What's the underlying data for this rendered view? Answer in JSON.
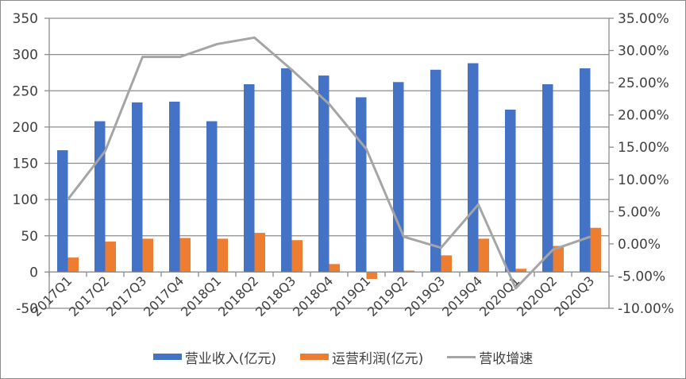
{
  "chart_data": {
    "type": "bar",
    "title": "",
    "xlabel": "",
    "ylabel": "",
    "y2label": "",
    "categories": [
      "2017Q1",
      "2017Q2",
      "2017Q3",
      "2017Q4",
      "2018Q1",
      "2018Q2",
      "2018Q3",
      "2018Q4",
      "2019Q1",
      "2019Q2",
      "2019Q3",
      "2019Q4",
      "2020Q1",
      "2020Q2",
      "2020Q3"
    ],
    "series": [
      {
        "name": "营业收入(亿元)",
        "type": "bar",
        "axis": "left",
        "color": "#4472C4",
        "values": [
          168,
          208,
          234,
          235,
          208,
          259,
          281,
          271,
          241,
          262,
          279,
          288,
          224,
          259,
          281
        ]
      },
      {
        "name": "运营利润(亿元)",
        "type": "bar",
        "axis": "left",
        "color": "#ED7D31",
        "values": [
          20,
          42,
          46,
          47,
          46,
          54,
          44,
          11,
          -9.5,
          2,
          23,
          46,
          4.5,
          36,
          61
        ]
      },
      {
        "name": "营收增速",
        "type": "line",
        "axis": "right",
        "color": "#A5A5A5",
        "values": [
          6.9,
          14.4,
          29.0,
          29.0,
          31.0,
          32.0,
          27.0,
          21.7,
          14.7,
          1.1,
          -0.6,
          6.1,
          -6.9,
          -0.9,
          1.1
        ]
      }
    ],
    "ylim": [
      -50,
      350
    ],
    "yticks": [
      "350",
      "300",
      "250",
      "200",
      "150",
      "100",
      "50",
      "0",
      "-50"
    ],
    "y2lim": [
      -10,
      35
    ],
    "y2ticks": [
      "35.00%",
      "30.00%",
      "25.00%",
      "20.00%",
      "15.00%",
      "10.00%",
      "5.00%",
      "0.00%",
      "-5.00%",
      "-10.00%"
    ],
    "grid": true,
    "legend_position": "bottom"
  },
  "legend": {
    "items": [
      {
        "label": "营业收入(亿元)",
        "color": "#4472C4",
        "kind": "bar"
      },
      {
        "label": "运营利润(亿元)",
        "color": "#ED7D31",
        "kind": "bar"
      },
      {
        "label": "营收增速",
        "color": "#A5A5A5",
        "kind": "line"
      }
    ]
  }
}
